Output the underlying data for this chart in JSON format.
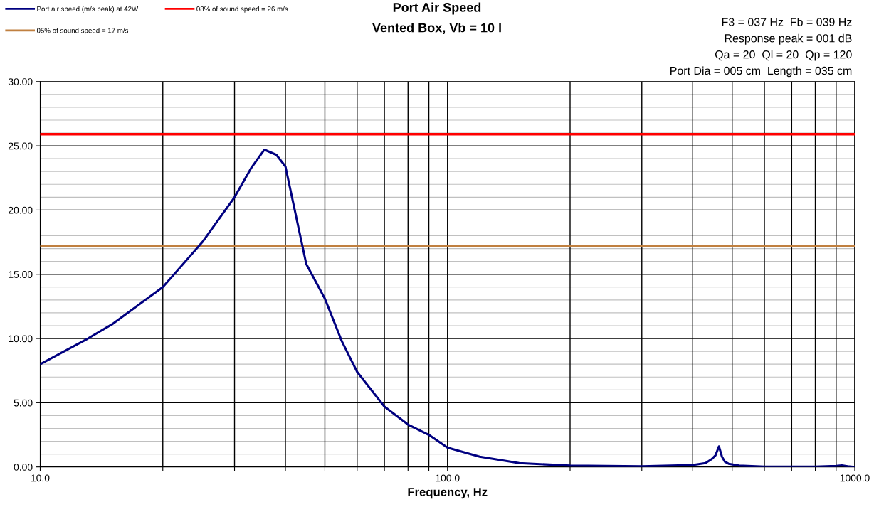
{
  "chart_data": {
    "type": "line",
    "title": "Port Air Speed",
    "subtitle": "Vented Box, Vb = 10 l",
    "xlabel": "Frequency, Hz",
    "annotations": [
      "F3 = 037 Hz  Fb = 039 Hz",
      "Response peak = 001 dB",
      "Qa = 20  Ql = 20  Qp = 120",
      "Port Dia = 005 cm  Length = 035 cm"
    ],
    "log": "x",
    "xlim": [
      10,
      1000
    ],
    "ylim": [
      0,
      30
    ],
    "xticks": [
      {
        "value": 10,
        "label": "10.0"
      },
      {
        "value": 20,
        "label": null
      },
      {
        "value": 30,
        "label": null
      },
      {
        "value": 40,
        "label": null
      },
      {
        "value": 50,
        "label": null
      },
      {
        "value": 60,
        "label": null
      },
      {
        "value": 70,
        "label": null
      },
      {
        "value": 80,
        "label": null
      },
      {
        "value": 90,
        "label": null
      },
      {
        "value": 100,
        "label": "100.0"
      },
      {
        "value": 200,
        "label": null
      },
      {
        "value": 300,
        "label": null
      },
      {
        "value": 400,
        "label": null
      },
      {
        "value": 500,
        "label": null
      },
      {
        "value": 600,
        "label": null
      },
      {
        "value": 700,
        "label": null
      },
      {
        "value": 800,
        "label": null
      },
      {
        "value": 900,
        "label": null
      },
      {
        "value": 1000,
        "label": "1000.0"
      }
    ],
    "yticks": [
      {
        "value": 0,
        "label": "0.00"
      },
      {
        "value": 5,
        "label": "5.00"
      },
      {
        "value": 10,
        "label": "10.00"
      },
      {
        "value": 15,
        "label": "15.00"
      },
      {
        "value": 20,
        "label": "20.00"
      },
      {
        "value": 25,
        "label": "25.00"
      },
      {
        "value": 30,
        "label": "30.00"
      }
    ],
    "grid": true,
    "legend": "top left",
    "series": [
      {
        "name": "Port air speed (m/s peak) at 42W",
        "color": "#000080",
        "x": [
          10,
          13.1,
          15,
          20,
          25,
          30,
          33,
          35.5,
          38,
          40,
          45,
          50,
          55,
          60,
          70,
          80,
          90,
          100,
          120,
          150,
          200,
          300,
          400,
          430,
          445,
          455,
          464,
          472,
          480,
          490,
          520,
          600,
          800,
          900,
          930,
          960,
          1000
        ],
        "values": [
          8.0,
          10.0,
          11.1,
          14.0,
          17.5,
          21.0,
          23.3,
          24.7,
          24.3,
          23.4,
          15.8,
          13.1,
          9.8,
          7.4,
          4.7,
          3.3,
          2.5,
          1.5,
          0.8,
          0.3,
          0.1,
          0.05,
          0.15,
          0.3,
          0.6,
          0.9,
          1.6,
          0.8,
          0.4,
          0.25,
          0.1,
          0.02,
          0.02,
          0.08,
          0.12,
          0.05,
          0.0
        ]
      }
    ],
    "ref_lines": [
      {
        "axis": "y",
        "value": 25.9,
        "label": "08% of sound speed = 26 m/s",
        "color": "#ff0000"
      },
      {
        "axis": "y",
        "value": 17.2,
        "label": "05% of sound speed = 17 m/s",
        "color": "#c08040"
      }
    ]
  }
}
